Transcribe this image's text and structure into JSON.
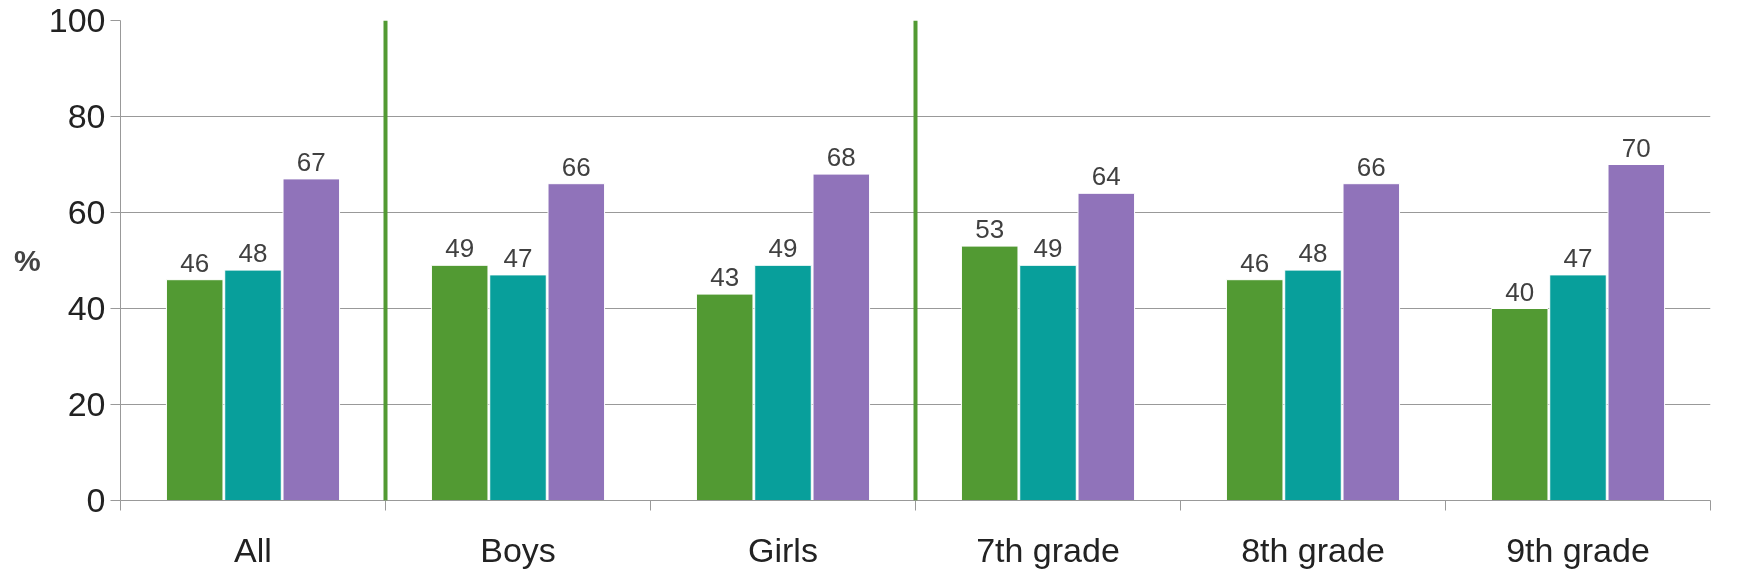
{
  "chart_data": {
    "type": "bar",
    "ylabel": "%",
    "categories": [
      "All",
      "Boys",
      "Girls",
      "7th grade",
      "8th grade",
      "9th grade"
    ],
    "series": [
      {
        "color": "#529a33",
        "values": [
          46,
          49,
          43,
          53,
          46,
          40
        ]
      },
      {
        "color": "#089f9b",
        "values": [
          48,
          47,
          49,
          49,
          48,
          47
        ]
      },
      {
        "color": "#9073ba",
        "values": [
          67,
          66,
          68,
          64,
          66,
          70
        ]
      }
    ],
    "ylim": [
      0,
      100
    ],
    "yticks": [
      0,
      20,
      40,
      60,
      80,
      100
    ],
    "grid": "y",
    "data_labels": true
  }
}
